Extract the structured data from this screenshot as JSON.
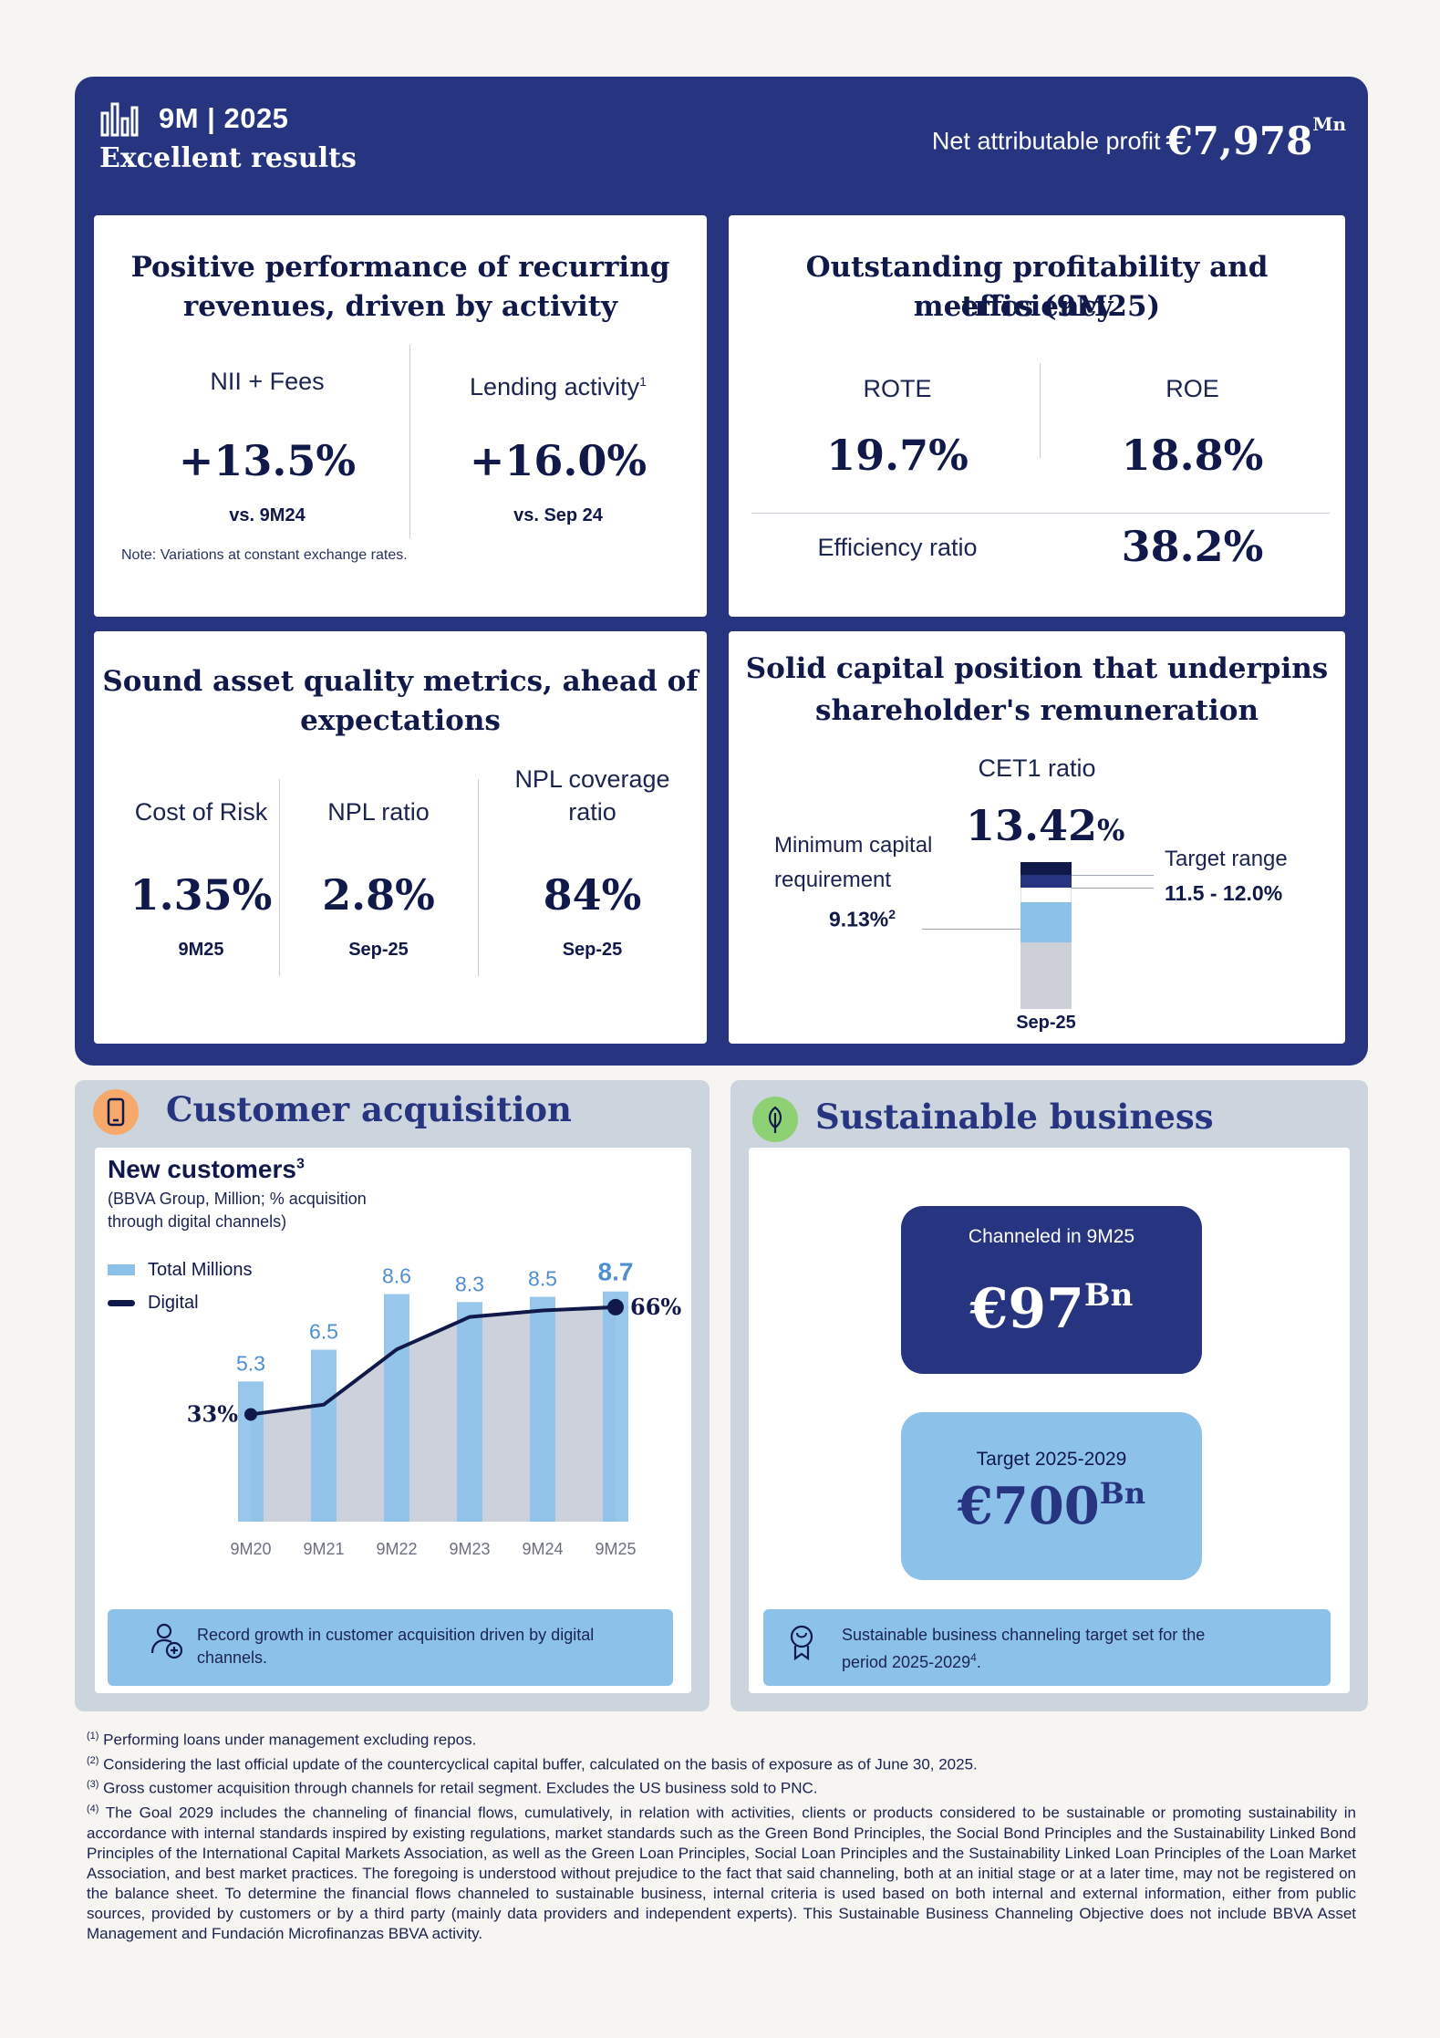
{
  "header": {
    "period": "9M | 2025",
    "subtitle": "Excellent results",
    "profit_label": "Net attributable profit",
    "profit_value": "€7,978",
    "profit_unit": "Mn"
  },
  "revenues": {
    "title_line1": "Positive performance of recurring",
    "title_line2": "revenues, driven by activity",
    "m1_label": "NII + Fees",
    "m1_value": "+13.5%",
    "m1_sub": "vs. 9M24",
    "m2_label": "Lending activity",
    "m2_sup": "1",
    "m2_value": "+16.0%",
    "m2_sub": "vs. Sep 24",
    "note": "Note: Variations at constant exchange rates."
  },
  "profitability": {
    "title_line1": "Outstanding profitability and efficiency",
    "title_line2": "metrics (9M25)",
    "rote_label": "ROTE",
    "rote_value": "19.7%",
    "roe_label": "ROE",
    "roe_value": "18.8%",
    "eff_label": "Efficiency ratio",
    "eff_value": "38.2%"
  },
  "asset_quality": {
    "title_line1": "Sound asset quality metrics, ahead of",
    "title_line2": "expectations",
    "cor_label": "Cost of Risk",
    "cor_value": "1.35%",
    "cor_sub": "9M25",
    "npl_label": "NPL ratio",
    "npl_value": "2.8%",
    "npl_sub": "Sep-25",
    "cov_label_1": "NPL coverage",
    "cov_label_2": "ratio",
    "cov_value": "84%",
    "cov_sub": "Sep-25"
  },
  "capital": {
    "title_line1": "Solid capital position that underpins",
    "title_line2": "shareholder's remuneration",
    "cet1_label": "CET1 ratio",
    "cet1_value": "13.42",
    "cet1_pct": "%",
    "min_label_1": "Minimum capital",
    "min_label_2": "requirement",
    "min_value": "9.13%",
    "min_sup": "2",
    "target_label": "Target range",
    "target_value": "11.5 - 12.0%",
    "period": "Sep-25"
  },
  "customer": {
    "title": "Customer acquisition",
    "chart_title": "New customers",
    "chart_title_sup": "3",
    "chart_sub_1": "(BBVA Group, Million; % acquisition",
    "chart_sub_2": "through digital channels)",
    "note": "Record growth in customer acquisition driven by digital channels.",
    "colors": {
      "bar": "#8cc2ea",
      "line": "#11194a",
      "area": "#cdd1dc"
    }
  },
  "chart_data": {
    "type": "bar",
    "title": "New customers",
    "categories": [
      "9M20",
      "9M21",
      "9M22",
      "9M23",
      "9M24",
      "9M25"
    ],
    "series": [
      {
        "name": "Total Millions",
        "type": "bar",
        "values": [
          5.3,
          6.5,
          8.6,
          8.3,
          8.5,
          8.7
        ]
      },
      {
        "name": "Digital",
        "type": "line",
        "values": [
          33,
          36,
          53,
          63,
          65,
          66
        ]
      }
    ],
    "value_labels": [
      "5.3",
      "6.5",
      "8.6",
      "8.3",
      "8.5",
      "8.7"
    ],
    "line_labels": {
      "first": "33%",
      "last": "66%"
    },
    "ylim": [
      0,
      10
    ],
    "legend": "top-left"
  },
  "sustainable": {
    "title": "Sustainable business",
    "channeled_label": "Channeled in 9M25",
    "channeled_value": "€97",
    "channeled_unit": "Bn",
    "target_label": "Target 2025-2029",
    "target_value": "€700",
    "target_unit": "Bn",
    "note_1": "Sustainable business channeling target set for the",
    "note_2": "period 2025-2029",
    "note_sup": "4",
    "note_end": "."
  },
  "footnotes": [
    {
      "sup": "(1)",
      "text": "Performing loans under management excluding repos."
    },
    {
      "sup": "(2)",
      "text": "Considering the last official update of the countercyclical capital buffer, calculated on the basis of exposure as of June 30, 2025."
    },
    {
      "sup": "(3)",
      "text": "Gross customer acquisition through channels for retail segment. Excludes the US business sold to PNC."
    },
    {
      "sup": "(4)",
      "text": "The Goal 2029 includes the channeling of financial flows, cumulatively, in relation with activities, clients or products considered to be sustainable or promoting sustainability in accordance with internal standards inspired by existing regulations, market standards such as the Green Bond Principles, the Social Bond Principles and the Sustainability Linked Bond Principles of the International Capital Markets Association, as well as the Green Loan Principles, Social Loan Principles and the Sustainability Linked Loan Principles of the Loan Market Association, and best market practices. The foregoing is understood without prejudice to the fact that said channeling, both at an initial stage or at a later time, may not be registered on the balance sheet. To determine the financial flows channeled to sustainable business, internal criteria is used based on both internal and external information, either from public sources, provided by customers or by a third party (mainly data providers and independent experts). This Sustainable Business Channeling Objective does not include BBVA Asset Management and Fundación Microfinanzas BBVA activity."
    }
  ]
}
